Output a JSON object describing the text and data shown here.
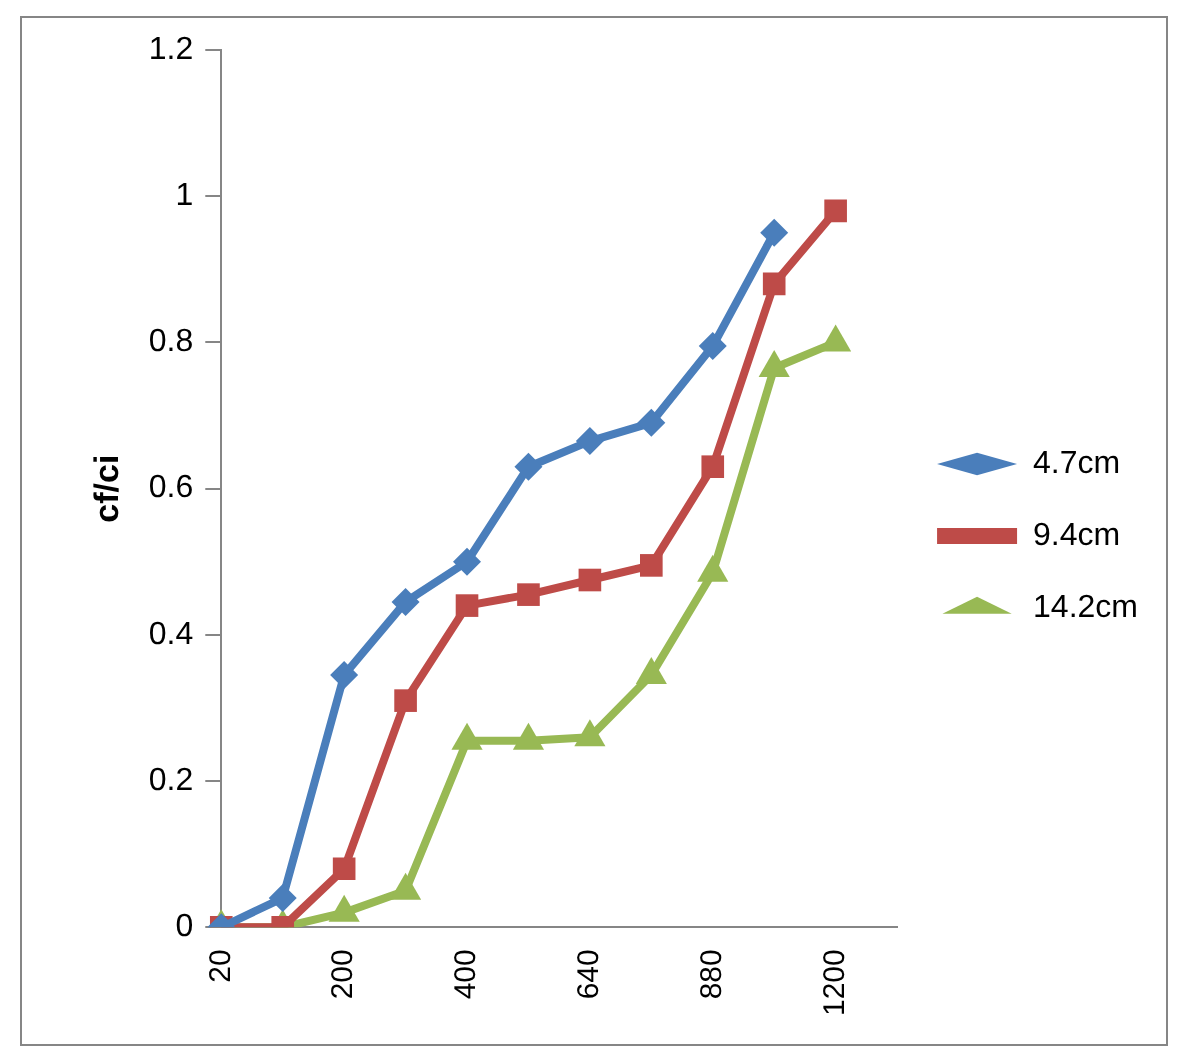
{
  "chart_data": {
    "type": "line",
    "ylabel": "cf/ci",
    "categories": [
      "20",
      null,
      "200",
      null,
      "400",
      null,
      "640",
      null,
      "880",
      null,
      "1200",
      null
    ],
    "series": [
      {
        "name": "4.7cm",
        "color": "#4a7ebb",
        "marker": "diamond",
        "values": [
          0,
          0.04,
          0.345,
          0.445,
          0.5,
          0.63,
          0.665,
          0.69,
          0.795,
          0.95,
          null,
          null
        ]
      },
      {
        "name": "9.4cm",
        "color": "#be4b48",
        "marker": "square",
        "values": [
          0,
          0,
          0.08,
          0.31,
          0.44,
          0.455,
          0.475,
          0.495,
          0.63,
          0.88,
          0.98,
          null
        ]
      },
      {
        "name": "14.2cm",
        "color": "#98b954",
        "marker": "triangle",
        "values": [
          0,
          0,
          0.02,
          0.05,
          0.255,
          0.255,
          0.26,
          0.345,
          0.485,
          0.765,
          0.8,
          null
        ]
      }
    ],
    "ylim": [
      0,
      1.2
    ],
    "yticks": [
      0,
      0.2,
      0.4,
      0.6,
      0.8,
      1,
      1.2
    ],
    "grid": false,
    "legend": "right"
  }
}
